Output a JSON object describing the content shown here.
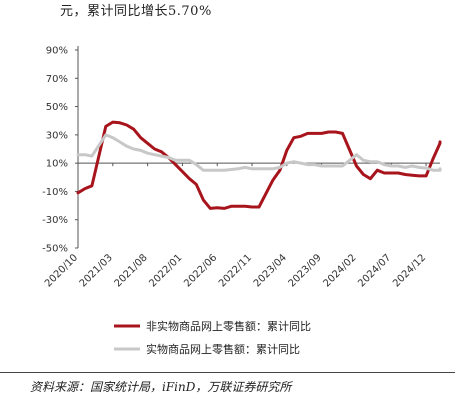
{
  "header_text": "元，累计同比增长5.70%",
  "source_text": "资料来源：国家统计局，iFinD，万联证券研究所",
  "chart_data": {
    "type": "line",
    "title": "",
    "xlabel": "",
    "ylabel": "",
    "ylim": [
      -50,
      90
    ],
    "y_ticks": [
      -50,
      -30,
      -10,
      10,
      30,
      50,
      70,
      90
    ],
    "y_tick_labels": [
      "-50%",
      "-30%",
      "-10%",
      "10%",
      "30%",
      "50%",
      "70%",
      "90%"
    ],
    "x_tick_labels": [
      "2020/10",
      "2021/03",
      "2021/08",
      "2022/01",
      "2022/06",
      "2022/11",
      "2023/04",
      "2023/09",
      "2024/02",
      "2024/07",
      "2024/12"
    ],
    "x_start": "2020/10",
    "x_end": "2025/02",
    "grid": false,
    "legend_position": "bottom",
    "series": [
      {
        "name": "非实物商品网上零售额：累计同比",
        "color": "#a8141c",
        "points": [
          [
            "2020/10",
            -11.0
          ],
          [
            "2020/11",
            -8.0
          ],
          [
            "2020/12",
            -6.0
          ],
          [
            "2021/02",
            36.0
          ],
          [
            "2021/03",
            39.0
          ],
          [
            "2021/04",
            38.5
          ],
          [
            "2021/05",
            37.0
          ],
          [
            "2021/06",
            34.0
          ],
          [
            "2021/07",
            28.0
          ],
          [
            "2021/08",
            24.0
          ],
          [
            "2021/09",
            20.0
          ],
          [
            "2021/10",
            18.0
          ],
          [
            "2021/11",
            14.0
          ],
          [
            "2021/12",
            9.0
          ],
          [
            "2022/02",
            -1.0
          ],
          [
            "2022/03",
            -5.0
          ],
          [
            "2022/04",
            -16.0
          ],
          [
            "2022/05",
            -22.0
          ],
          [
            "2022/06",
            -21.5
          ],
          [
            "2022/07",
            -22.0
          ],
          [
            "2022/08",
            -20.5
          ],
          [
            "2022/09",
            -20.5
          ],
          [
            "2022/10",
            -20.5
          ],
          [
            "2022/11",
            -21.0
          ],
          [
            "2022/12",
            -21.0
          ],
          [
            "2023/02",
            -2.0
          ],
          [
            "2023/03",
            5.0
          ],
          [
            "2023/04",
            19.0
          ],
          [
            "2023/05",
            28.0
          ],
          [
            "2023/06",
            29.0
          ],
          [
            "2023/07",
            31.0
          ],
          [
            "2023/08",
            31.0
          ],
          [
            "2023/09",
            31.0
          ],
          [
            "2023/10",
            32.0
          ],
          [
            "2023/11",
            32.0
          ],
          [
            "2023/12",
            31.0
          ],
          [
            "2024/02",
            8.0
          ],
          [
            "2024/03",
            2.0
          ],
          [
            "2024/04",
            -1.0
          ],
          [
            "2024/05",
            5.0
          ],
          [
            "2024/06",
            3.0
          ],
          [
            "2024/07",
            3.0
          ],
          [
            "2024/08",
            3.0
          ],
          [
            "2024/09",
            2.0
          ],
          [
            "2024/10",
            1.5
          ],
          [
            "2024/11",
            1.0
          ],
          [
            "2024/12",
            1.0
          ],
          [
            "2025/01",
            13.0
          ],
          [
            "2025/02",
            24.0
          ],
          [
            "2025/02",
            25.0
          ]
        ]
      },
      {
        "name": "实物商品网上零售额：累计同比",
        "color": "#c8c8c8",
        "points": [
          [
            "2020/10",
            16.0
          ],
          [
            "2020/11",
            16.0
          ],
          [
            "2020/12",
            15.0
          ],
          [
            "2021/02",
            30.0
          ],
          [
            "2021/03",
            28.0
          ],
          [
            "2021/04",
            25.0
          ],
          [
            "2021/05",
            22.0
          ],
          [
            "2021/06",
            20.0
          ],
          [
            "2021/07",
            19.0
          ],
          [
            "2021/08",
            17.0
          ],
          [
            "2021/09",
            16.0
          ],
          [
            "2021/10",
            15.0
          ],
          [
            "2021/11",
            14.0
          ],
          [
            "2021/12",
            12.0
          ],
          [
            "2022/02",
            12.0
          ],
          [
            "2022/03",
            9.0
          ],
          [
            "2022/04",
            5.0
          ],
          [
            "2022/05",
            5.0
          ],
          [
            "2022/06",
            5.0
          ],
          [
            "2022/07",
            5.0
          ],
          [
            "2022/08",
            5.5
          ],
          [
            "2022/09",
            6.0
          ],
          [
            "2022/10",
            7.0
          ],
          [
            "2022/11",
            6.0
          ],
          [
            "2022/12",
            6.0
          ],
          [
            "2023/02",
            6.0
          ],
          [
            "2023/03",
            7.0
          ],
          [
            "2023/04",
            10.0
          ],
          [
            "2023/05",
            11.0
          ],
          [
            "2023/06",
            10.0
          ],
          [
            "2023/07",
            9.0
          ],
          [
            "2023/08",
            9.0
          ],
          [
            "2023/09",
            8.0
          ],
          [
            "2023/10",
            8.0
          ],
          [
            "2023/11",
            8.0
          ],
          [
            "2023/12",
            8.0
          ],
          [
            "2024/02",
            16.0
          ],
          [
            "2024/03",
            12.0
          ],
          [
            "2024/04",
            11.0
          ],
          [
            "2024/05",
            11.0
          ],
          [
            "2024/06",
            9.0
          ],
          [
            "2024/07",
            8.0
          ],
          [
            "2024/08",
            8.0
          ],
          [
            "2024/09",
            7.0
          ],
          [
            "2024/10",
            8.0
          ],
          [
            "2024/11",
            7.0
          ],
          [
            "2024/12",
            6.5
          ],
          [
            "2025/01",
            5.0
          ],
          [
            "2025/02",
            5.0
          ],
          [
            "2025/02",
            6.0
          ]
        ]
      }
    ]
  }
}
